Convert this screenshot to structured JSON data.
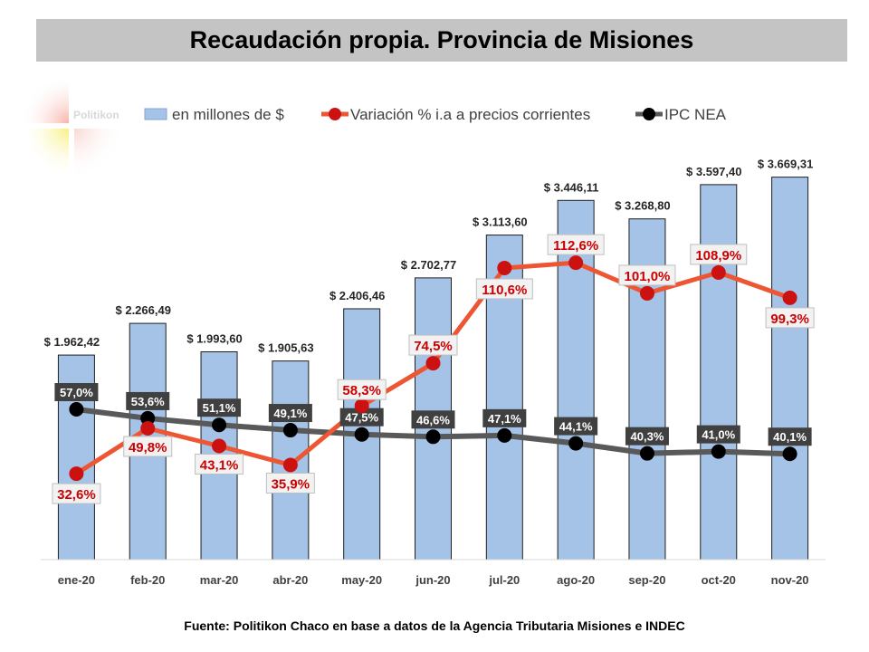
{
  "source": "Fuente: Politikon Chaco en base a datos de la Agencia Tributaria Misiones e INDEC",
  "logo_text": "Politikon",
  "colors": {
    "bar": "#a4c3e6",
    "bar_stroke": "#1f1f1f",
    "variation_line": "#ee5533",
    "variation_marker": "#cc1111",
    "variation_label": "#cc0000",
    "ipc_line": "#595959",
    "ipc_marker": "#000000",
    "ipc_label_bg": "#404040",
    "title_bg": "#c4c4c4"
  },
  "chart_data": {
    "type": "bar",
    "title": "Recaudación propia. Provincia de Misiones",
    "legend_position": "top",
    "grid": false,
    "categories": [
      "ene-20",
      "feb-20",
      "mar-20",
      "abr-20",
      "may-20",
      "jun-20",
      "jul-20",
      "ago-20",
      "sep-20",
      "oct-20",
      "nov-20"
    ],
    "ylim": [
      0,
      4300
    ],
    "series": [
      {
        "name": "en millones de $",
        "type": "bar",
        "values": [
          1962.42,
          2266.49,
          1993.6,
          1905.63,
          2406.46,
          2702.77,
          3113.6,
          3446.11,
          3268.8,
          3597.4,
          3669.31
        ],
        "labels": [
          "$ 1.962,42",
          "$ 2.266,49",
          "$ 1.993,60",
          "$ 1.905,63",
          "$ 2.406,46",
          "$ 2.702,77",
          "$ 3.113,60",
          "$ 3.446,11",
          "$ 3.268,80",
          "$ 3.597,40",
          "$ 3.669,31"
        ]
      },
      {
        "name": "Variación % i.a a precios corrientes",
        "type": "line",
        "values": [
          32.6,
          49.8,
          43.1,
          35.9,
          58.3,
          74.5,
          110.6,
          112.6,
          101.0,
          108.9,
          99.3
        ],
        "labels": [
          "32,6%",
          "49,8%",
          "43,1%",
          "35,9%",
          "58,3%",
          "74,5%",
          "110,6%",
          "112,6%",
          "101,0%",
          "108,9%",
          "99,3%"
        ]
      },
      {
        "name": "IPC NEA",
        "type": "line",
        "values": [
          57.0,
          53.6,
          51.1,
          49.1,
          47.5,
          46.6,
          47.1,
          44.1,
          40.3,
          41.0,
          40.1
        ],
        "labels": [
          "57,0%",
          "53,6%",
          "51,1%",
          "49,1%",
          "47,5%",
          "46,6%",
          "47,1%",
          "44,1%",
          "40,3%",
          "41,0%",
          "40,1%"
        ]
      }
    ],
    "secondary_ylim": [
      0,
      170
    ]
  }
}
